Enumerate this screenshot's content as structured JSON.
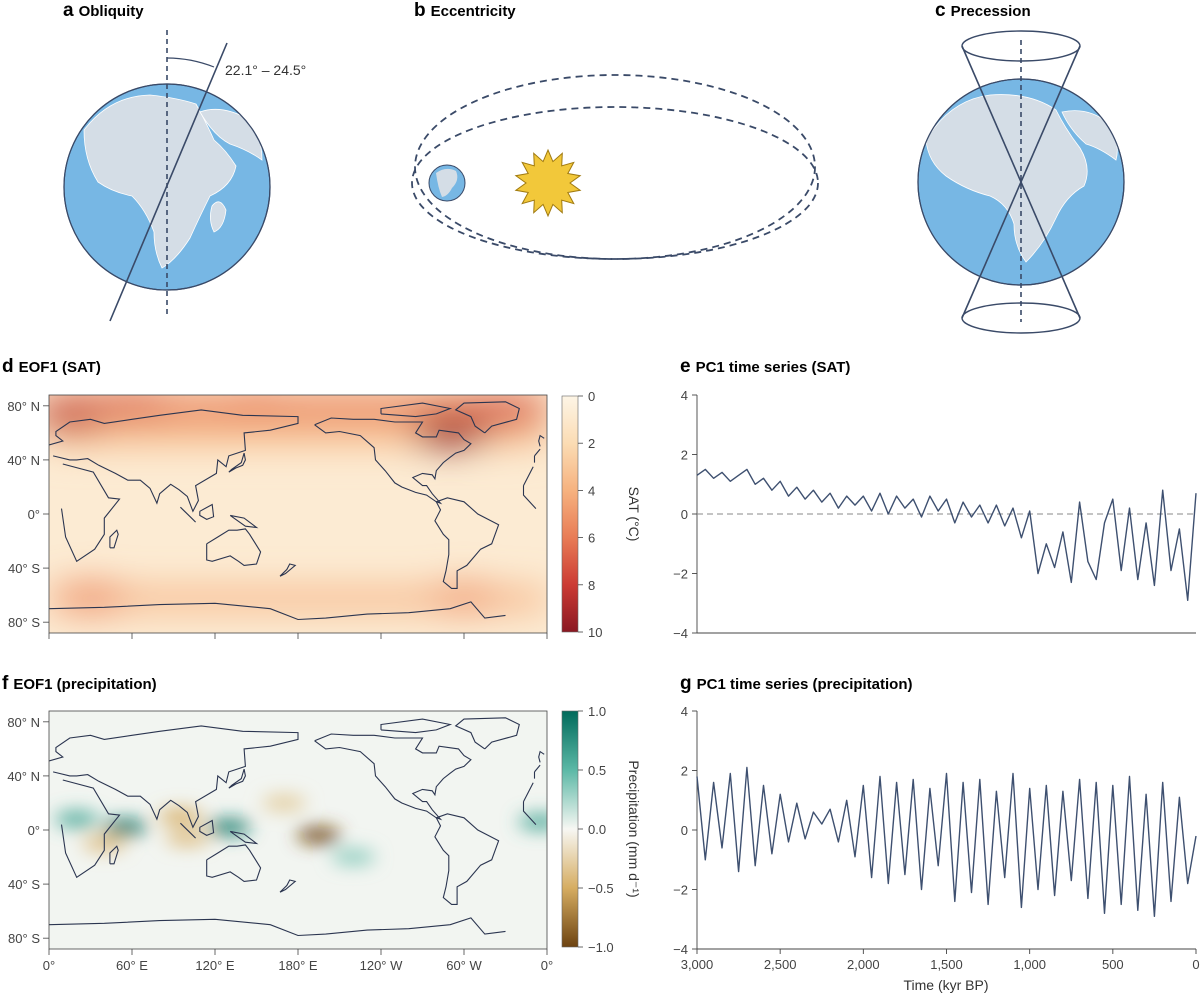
{
  "colors": {
    "ocean": "#77b7e4",
    "land": "#d4dde6",
    "line": "#3a4a68",
    "series": "#3e5070",
    "sun": "#f2c83a"
  },
  "panels": {
    "a": {
      "letter": "a",
      "title": "Obliquity",
      "annotation": "22.1° – 24.5°"
    },
    "b": {
      "letter": "b",
      "title": "Eccentricity"
    },
    "c": {
      "letter": "c",
      "title": "Precession"
    },
    "d": {
      "letter": "d",
      "title": "EOF1 (SAT)"
    },
    "e": {
      "letter": "e",
      "title": "PC1 time series (SAT)"
    },
    "f": {
      "letter": "f",
      "title": "EOF1 (precipitation)"
    },
    "g": {
      "letter": "g",
      "title": "PC1 time series (precipitation)"
    }
  },
  "chart_data": [
    {
      "id": "d",
      "type": "heatmap",
      "title": "EOF1 (SAT)",
      "lat_ticks": [
        "80° N",
        "40° N",
        "0°",
        "40° S",
        "80° S"
      ],
      "lat_values": [
        80,
        40,
        0,
        -40,
        -80
      ],
      "lon_ticks": [],
      "colorbar": {
        "label": "SAT (°C)",
        "ticks": [
          0,
          2,
          4,
          6,
          8,
          10
        ],
        "tick_labels": [
          "0",
          "2",
          "4",
          "6",
          "8",
          "10"
        ],
        "range": [
          0,
          10
        ],
        "reversed": true
      },
      "hotspots": [
        {
          "lon": 290,
          "lat": 60,
          "value": 10
        },
        {
          "lon": 15,
          "lat": 72,
          "value": 8.5
        },
        {
          "lon": 60,
          "lat": 80,
          "value": 7
        },
        {
          "lon": 330,
          "lat": 75,
          "value": 7.5
        },
        {
          "lon": 30,
          "lat": -62,
          "value": 5.5
        },
        {
          "lon": 300,
          "lat": -62,
          "value": 5
        },
        {
          "lon": 150,
          "lat": 80,
          "value": 6
        }
      ]
    },
    {
      "id": "e",
      "type": "line",
      "title": "PC1 time series (SAT)",
      "xlim": [
        3000,
        0
      ],
      "ylim": [
        -4,
        4
      ],
      "yticks": [
        4,
        2,
        0,
        -2,
        -4
      ],
      "ytick_labels": [
        "4",
        "2",
        "0",
        "−2",
        "−4"
      ],
      "zero_line": "dashed",
      "series": [
        {
          "x": [
            3000,
            2950,
            2900,
            2850,
            2800,
            2750,
            2700,
            2650,
            2600,
            2550,
            2500,
            2450,
            2400,
            2350,
            2300,
            2250,
            2200,
            2150,
            2100,
            2050,
            2000,
            1950,
            1900,
            1850,
            1800,
            1750,
            1700,
            1650,
            1600,
            1550,
            1500,
            1450,
            1400,
            1350,
            1300,
            1250,
            1200,
            1150,
            1100,
            1050,
            1000,
            950,
            900,
            850,
            800,
            750,
            700,
            650,
            600,
            550,
            500,
            450,
            400,
            350,
            300,
            250,
            200,
            150,
            100,
            50,
            0
          ],
          "y": [
            1.3,
            1.5,
            1.2,
            1.4,
            1.1,
            1.3,
            1.5,
            1.0,
            1.2,
            0.8,
            1.1,
            0.6,
            0.9,
            0.5,
            0.8,
            0.4,
            0.7,
            0.2,
            0.6,
            0.3,
            0.6,
            0.1,
            0.7,
            0.0,
            0.6,
            0.2,
            0.5,
            -0.1,
            0.6,
            0.1,
            0.5,
            -0.3,
            0.4,
            -0.1,
            0.3,
            -0.3,
            0.3,
            -0.4,
            0.2,
            -0.8,
            0.1,
            -2.0,
            -1.0,
            -1.8,
            -0.6,
            -2.3,
            0.4,
            -1.6,
            -2.2,
            -0.3,
            0.5,
            -1.9,
            0.2,
            -2.2,
            -0.3,
            -2.4,
            0.8,
            -1.9,
            -0.5,
            -2.9,
            0.7
          ]
        }
      ]
    },
    {
      "id": "f",
      "type": "heatmap",
      "title": "EOF1 (precipitation)",
      "lat_ticks": [
        "80° N",
        "40° N",
        "0°",
        "40° S",
        "80° S"
      ],
      "lat_values": [
        80,
        40,
        0,
        -40,
        -80
      ],
      "lon_ticks": [
        "0°",
        "60° E",
        "120° E",
        "180° E",
        "120° W",
        "60° W",
        "0°"
      ],
      "colorbar": {
        "label": "Precipitation (mm d⁻¹)",
        "ticks": [
          1.0,
          0.5,
          0.0,
          -0.5,
          -1.0
        ],
        "tick_labels": [
          "1.0",
          "0.5",
          "0.0",
          "−0.5",
          "−1.0"
        ],
        "range": [
          -1,
          1
        ]
      },
      "hotspots": [
        {
          "lon": 55,
          "lat": 2,
          "value": 0.95
        },
        {
          "lon": 20,
          "lat": 8,
          "value": 0.6
        },
        {
          "lon": 130,
          "lat": 2,
          "value": 0.9
        },
        {
          "lon": 355,
          "lat": 6,
          "value": 0.6
        },
        {
          "lon": 195,
          "lat": -4,
          "value": -1.0
        },
        {
          "lon": 95,
          "lat": 10,
          "value": -0.5
        },
        {
          "lon": 100,
          "lat": -6,
          "value": -0.4
        },
        {
          "lon": 170,
          "lat": 20,
          "value": -0.3
        },
        {
          "lon": 40,
          "lat": -10,
          "value": -0.4
        },
        {
          "lon": 220,
          "lat": -20,
          "value": 0.35
        }
      ]
    },
    {
      "id": "g",
      "type": "line",
      "title": "PC1 time series (precipitation)",
      "xlabel": "Time (kyr BP)",
      "xlim": [
        3000,
        0
      ],
      "ylim": [
        -4,
        4
      ],
      "xticks": [
        3000,
        2500,
        2000,
        1500,
        1000,
        500,
        0
      ],
      "xtick_labels": [
        "3,000",
        "2,500",
        "2,000",
        "1,500",
        "1,000",
        "500",
        "0"
      ],
      "yticks": [
        4,
        2,
        0,
        -2,
        -4
      ],
      "ytick_labels": [
        "4",
        "2",
        "0",
        "−2",
        "−4"
      ],
      "series": [
        {
          "x": [
            3000,
            2950,
            2900,
            2850,
            2800,
            2750,
            2700,
            2650,
            2600,
            2550,
            2500,
            2450,
            2400,
            2350,
            2300,
            2250,
            2200,
            2150,
            2100,
            2050,
            2000,
            1950,
            1900,
            1850,
            1800,
            1750,
            1700,
            1650,
            1600,
            1550,
            1500,
            1450,
            1400,
            1350,
            1300,
            1250,
            1200,
            1150,
            1100,
            1050,
            1000,
            950,
            900,
            850,
            800,
            750,
            700,
            650,
            600,
            550,
            500,
            450,
            400,
            350,
            300,
            250,
            200,
            150,
            100,
            50,
            0
          ],
          "y": [
            1.8,
            -1.0,
            1.6,
            -0.6,
            1.9,
            -1.4,
            2.1,
            -1.2,
            1.5,
            -0.8,
            1.2,
            -0.4,
            0.9,
            -0.3,
            0.6,
            0.2,
            0.7,
            -0.4,
            1.0,
            -0.9,
            1.5,
            -1.6,
            1.8,
            -1.8,
            1.6,
            -1.5,
            1.7,
            -2.0,
            1.4,
            -1.2,
            1.9,
            -2.4,
            1.6,
            -2.1,
            1.7,
            -2.5,
            1.3,
            -1.6,
            1.9,
            -2.6,
            1.4,
            -2.0,
            1.5,
            -2.2,
            1.3,
            -1.7,
            1.7,
            -2.3,
            1.6,
            -2.8,
            1.5,
            -2.5,
            1.8,
            -2.7,
            1.2,
            -2.9,
            1.6,
            -2.4,
            1.1,
            -1.8,
            -0.2
          ]
        }
      ]
    }
  ]
}
